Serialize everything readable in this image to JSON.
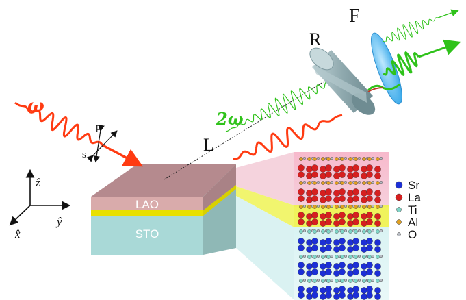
{
  "labels": {
    "omega": "ω",
    "two_omega": "2ω",
    "lens": "L",
    "retarder": "R",
    "filter": "F",
    "pol_p": "p",
    "pol_s": "s",
    "axis_z": "ẑ",
    "axis_y": "ŷ",
    "axis_x": "x̂",
    "layer_top": "LAO",
    "layer_bottom": "STO"
  },
  "legend": [
    {
      "label": "Sr",
      "color": "#1c2fd6"
    },
    {
      "label": "La",
      "color": "#d61f1f"
    },
    {
      "label": "Ti",
      "color": "#7fd6c8"
    },
    {
      "label": "Al",
      "color": "#e0a020"
    },
    {
      "label": "O",
      "color": "#b8bcc4"
    }
  ],
  "colors": {
    "fundamental": "#ff3b12",
    "second_harmonic": "#2fc21a",
    "lao": "#c9a3a3",
    "sto": "#a9d9d7",
    "interface": "#e8e000",
    "retarder": "#9fb9be",
    "filter": "#4ab8ee"
  }
}
